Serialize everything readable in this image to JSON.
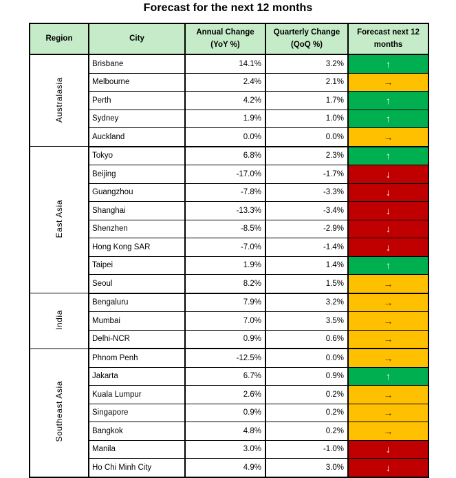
{
  "title": "Forecast for the next 12 months",
  "table": {
    "columns": [
      {
        "line1": "Region",
        "line2": ""
      },
      {
        "line1": "City",
        "line2": ""
      },
      {
        "line1": "Annual Change",
        "line2": "(YoY %)"
      },
      {
        "line1": "Quarterly Change",
        "line2": "(QoQ %)"
      },
      {
        "line1": "Forecast next 12",
        "line2": "months"
      }
    ],
    "regions": [
      {
        "name": "Australasia",
        "cities": [
          {
            "city": "Brisbane",
            "yoy": "14.1%",
            "qoq": "3.2%",
            "forecast": "up"
          },
          {
            "city": "Melbourne",
            "yoy": "2.4%",
            "qoq": "2.1%",
            "forecast": "flat"
          },
          {
            "city": "Perth",
            "yoy": "4.2%",
            "qoq": "1.7%",
            "forecast": "up"
          },
          {
            "city": "Sydney",
            "yoy": "1.9%",
            "qoq": "1.0%",
            "forecast": "up"
          },
          {
            "city": "Auckland",
            "yoy": "0.0%",
            "qoq": "0.0%",
            "forecast": "flat"
          }
        ]
      },
      {
        "name": "East Asia",
        "cities": [
          {
            "city": "Tokyo",
            "yoy": "6.8%",
            "qoq": "2.3%",
            "forecast": "up"
          },
          {
            "city": "Beijing",
            "yoy": "-17.0%",
            "qoq": "-1.7%",
            "forecast": "down"
          },
          {
            "city": "Guangzhou",
            "yoy": "-7.8%",
            "qoq": "-3.3%",
            "forecast": "down"
          },
          {
            "city": "Shanghai",
            "yoy": "-13.3%",
            "qoq": "-3.4%",
            "forecast": "down"
          },
          {
            "city": "Shenzhen",
            "yoy": "-8.5%",
            "qoq": "-2.9%",
            "forecast": "down"
          },
          {
            "city": "Hong Kong SAR",
            "yoy": "-7.0%",
            "qoq": "-1.4%",
            "forecast": "down"
          },
          {
            "city": "Taipei",
            "yoy": "1.9%",
            "qoq": "1.4%",
            "forecast": "up"
          },
          {
            "city": "Seoul",
            "yoy": "8.2%",
            "qoq": "1.5%",
            "forecast": "flat"
          }
        ]
      },
      {
        "name": "India",
        "cities": [
          {
            "city": "Bengaluru",
            "yoy": "7.9%",
            "qoq": "3.2%",
            "forecast": "flat"
          },
          {
            "city": "Mumbai",
            "yoy": "7.0%",
            "qoq": "3.5%",
            "forecast": "flat"
          },
          {
            "city": "Delhi-NCR",
            "yoy": "0.9%",
            "qoq": "0.6%",
            "forecast": "flat"
          }
        ]
      },
      {
        "name": "Southeast Asia",
        "cities": [
          {
            "city": "Phnom Penh",
            "yoy": "-12.5%",
            "qoq": "0.0%",
            "forecast": "flat"
          },
          {
            "city": "Jakarta",
            "yoy": "6.7%",
            "qoq": "0.9%",
            "forecast": "up"
          },
          {
            "city": "Kuala Lumpur",
            "yoy": "2.6%",
            "qoq": "0.2%",
            "forecast": "flat"
          },
          {
            "city": "Singapore",
            "yoy": "0.9%",
            "qoq": "0.2%",
            "forecast": "flat"
          },
          {
            "city": "Bangkok",
            "yoy": "4.8%",
            "qoq": "0.2%",
            "forecast": "flat"
          },
          {
            "city": "Manila",
            "yoy": "3.0%",
            "qoq": "-1.0%",
            "forecast": "down"
          },
          {
            "city": "Ho Chi Minh City",
            "yoy": "4.9%",
            "qoq": "3.0%",
            "forecast": "down"
          }
        ]
      }
    ]
  },
  "forecast_styles": {
    "up": {
      "icon": "up-arrow",
      "glyph": "↑",
      "bg": "#00B050",
      "fg": "#FFFFFF"
    },
    "flat": {
      "icon": "right-arrow",
      "glyph": "→",
      "bg": "#FFC000",
      "fg": "#433300"
    },
    "down": {
      "icon": "down-arrow",
      "glyph": "↓",
      "bg": "#C00000",
      "fg": "#FFFFFF"
    }
  },
  "colors": {
    "header_bg": "#C6EBC8",
    "up_bg": "#00B050",
    "flat_bg": "#FFC000",
    "down_bg": "#C00000",
    "border": "#000000"
  },
  "chart_data": {
    "type": "table",
    "title": "Forecast for the next 12 months",
    "columns": [
      "Region",
      "City",
      "Annual Change (YoY %)",
      "Quarterly Change (QoQ %)",
      "Forecast next 12 months"
    ],
    "rows": [
      [
        "Australasia",
        "Brisbane",
        14.1,
        3.2,
        "up"
      ],
      [
        "Australasia",
        "Melbourne",
        2.4,
        2.1,
        "flat"
      ],
      [
        "Australasia",
        "Perth",
        4.2,
        1.7,
        "up"
      ],
      [
        "Australasia",
        "Sydney",
        1.9,
        1.0,
        "up"
      ],
      [
        "Australasia",
        "Auckland",
        0.0,
        0.0,
        "flat"
      ],
      [
        "East Asia",
        "Tokyo",
        6.8,
        2.3,
        "up"
      ],
      [
        "East Asia",
        "Beijing",
        -17.0,
        -1.7,
        "down"
      ],
      [
        "East Asia",
        "Guangzhou",
        -7.8,
        -3.3,
        "down"
      ],
      [
        "East Asia",
        "Shanghai",
        -13.3,
        -3.4,
        "down"
      ],
      [
        "East Asia",
        "Shenzhen",
        -8.5,
        -2.9,
        "down"
      ],
      [
        "East Asia",
        "Hong Kong SAR",
        -7.0,
        -1.4,
        "down"
      ],
      [
        "East Asia",
        "Taipei",
        1.9,
        1.4,
        "up"
      ],
      [
        "East Asia",
        "Seoul",
        8.2,
        1.5,
        "flat"
      ],
      [
        "India",
        "Bengaluru",
        7.9,
        3.2,
        "flat"
      ],
      [
        "India",
        "Mumbai",
        7.0,
        3.5,
        "flat"
      ],
      [
        "India",
        "Delhi-NCR",
        0.9,
        0.6,
        "flat"
      ],
      [
        "Southeast Asia",
        "Phnom Penh",
        -12.5,
        0.0,
        "flat"
      ],
      [
        "Southeast Asia",
        "Jakarta",
        6.7,
        0.9,
        "up"
      ],
      [
        "Southeast Asia",
        "Kuala Lumpur",
        2.6,
        0.2,
        "flat"
      ],
      [
        "Southeast Asia",
        "Singapore",
        0.9,
        0.2,
        "flat"
      ],
      [
        "Southeast Asia",
        "Bangkok",
        4.8,
        0.2,
        "flat"
      ],
      [
        "Southeast Asia",
        "Manila",
        3.0,
        -1.0,
        "down"
      ],
      [
        "Southeast Asia",
        "Ho Chi Minh City",
        4.9,
        3.0,
        "down"
      ]
    ]
  }
}
